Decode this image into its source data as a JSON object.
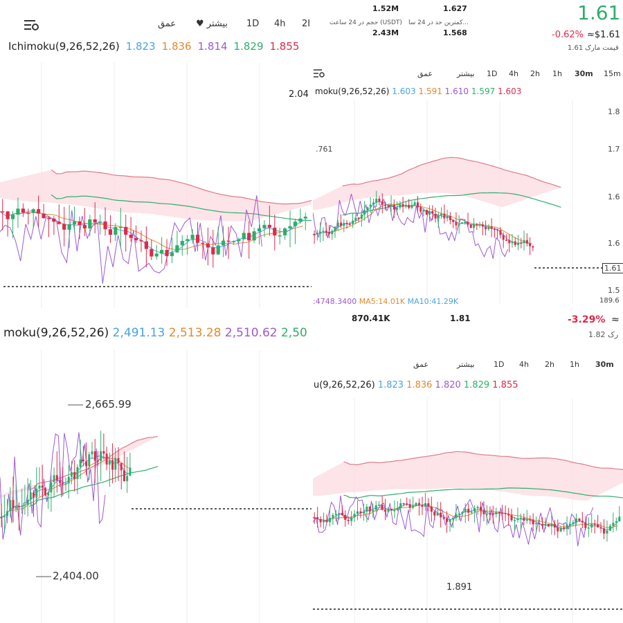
{
  "top_left": {
    "toolbar": [
      "عمق",
      "بیشتر",
      "1D",
      "4h",
      "2I"
    ],
    "indicator": {
      "name": "Ichimoku(9,26,52,26)",
      "values": [
        "1.823",
        "1.836",
        "1.814",
        "1.829",
        "1.855"
      ]
    },
    "price_label": "2.04"
  },
  "top_right": {
    "header": {
      "volume_24h": "1.52M",
      "volume_label": "حجم در 24 ساعت (USDT)",
      "volume_2": "2.43M",
      "high": "1.627",
      "low_label": "کمترین حد در 24 سا...",
      "low": "1.568",
      "price": "1.61",
      "change": "-0.62%",
      "usd": "≈$1.61",
      "mark_label": "قیمت مارک",
      "mark": "1.61"
    },
    "toolbar": [
      "عمق",
      "بیشتر",
      "1D",
      "4h",
      "2h",
      "1h",
      "30m",
      "15m"
    ],
    "indicator": {
      "name": "moku(9,26,52,26)",
      "values": [
        "1.603",
        "1.591",
        "1.610",
        "1.597",
        "1.603"
      ]
    },
    "yticks": [
      "1.8",
      "1.7",
      "1.6",
      "1.6",
      "1.5"
    ],
    "left_label": "761",
    "price_tag": "1.61",
    "volume_axis": "189.6",
    "volume": [
      ":4748.3400",
      "MA5:14.01K",
      "MA10:41.29K"
    ],
    "footer": {
      "a": "870.41K",
      "b": "1.81",
      "change": "-3.29%",
      "approx": "≈",
      "mark_label": "رک",
      "mark": "1.82"
    }
  },
  "bottom_left": {
    "indicator": {
      "name": "moku(9,26,52,26)",
      "values": [
        "2,491.13",
        "2,513.28",
        "2,510.62",
        "2,50"
      ]
    },
    "high_label": "2,665.99",
    "low_label": "2,404.00"
  },
  "bottom_right": {
    "toolbar": [
      "عمق",
      "بیشتر",
      "1D",
      "4h",
      "2h",
      "1h",
      "30m"
    ],
    "indicator": {
      "name": "u(9,26,52,26)",
      "values": [
        "1.823",
        "1.836",
        "1.820",
        "1.829",
        "1.855"
      ]
    },
    "low_label": "1.891"
  }
}
